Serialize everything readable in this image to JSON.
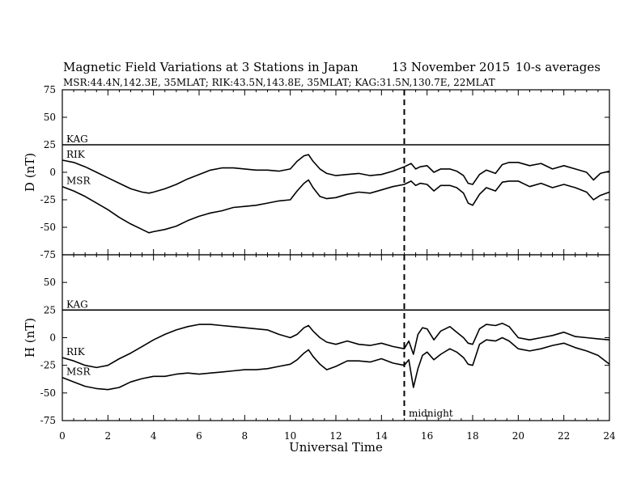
{
  "title": {
    "main": "Magnetic Field Variations at 3 Stations in Japan",
    "date": "13 November 2015",
    "averaging": "10-s averages"
  },
  "subtitle": "MSR:44.4N,142.3E, 35MLAT;  RIK:43.5N,143.8E, 35MLAT;  KAG:31.5N,130.7E, 22MLAT",
  "xlabel": "Universal Time",
  "midnight_label": "midnight",
  "colors": {
    "line": "#000000",
    "background": "#ffffff"
  },
  "chart_data": [
    {
      "type": "line",
      "panel": "top",
      "ylabel": "D (nT)",
      "x_ticks": [
        0,
        2,
        4,
        6,
        8,
        10,
        12,
        14,
        16,
        18,
        20,
        22,
        24
      ],
      "y_ticks": [
        -75,
        -50,
        -25,
        0,
        25,
        50,
        75
      ],
      "xlim": [
        0,
        24
      ],
      "ylim": [
        -75,
        75
      ],
      "vline": 15,
      "series": [
        {
          "name": "KAG",
          "x": [
            0,
            24
          ],
          "y": [
            25,
            25
          ]
        },
        {
          "name": "RIK",
          "x": [
            0,
            0.5,
            1,
            1.5,
            2,
            2.5,
            3,
            3.5,
            3.8,
            4,
            4.5,
            5,
            5.5,
            6,
            6.5,
            7,
            7.5,
            8,
            8.5,
            9,
            9.5,
            10,
            10.3,
            10.6,
            10.8,
            11,
            11.3,
            11.6,
            12,
            12.5,
            13,
            13.5,
            14,
            14.5,
            15,
            15.3,
            15.5,
            15.7,
            16,
            16.3,
            16.6,
            17,
            17.3,
            17.6,
            17.8,
            18,
            18.3,
            18.6,
            19,
            19.3,
            19.6,
            20,
            20.5,
            21,
            21.5,
            22,
            22.5,
            23,
            23.3,
            23.6,
            24
          ],
          "y": [
            11,
            9,
            5,
            0,
            -5,
            -10,
            -15,
            -18,
            -19,
            -18,
            -15,
            -11,
            -6,
            -2,
            2,
            4,
            4,
            3,
            2,
            2,
            1,
            3,
            10,
            15,
            16,
            10,
            3,
            -1,
            -3,
            -2,
            -1,
            -3,
            -2,
            1,
            5,
            8,
            3,
            5,
            6,
            0,
            3,
            3,
            1,
            -3,
            -10,
            -11,
            -2,
            2,
            -1,
            7,
            9,
            9,
            6,
            8,
            3,
            6,
            3,
            0,
            -7,
            -1,
            1
          ]
        },
        {
          "name": "MSR",
          "x": [
            0,
            0.5,
            1,
            1.5,
            2,
            2.5,
            3,
            3.5,
            3.8,
            4,
            4.5,
            5,
            5.5,
            6,
            6.5,
            7,
            7.5,
            8,
            8.5,
            9,
            9.5,
            10,
            10.3,
            10.6,
            10.8,
            11,
            11.3,
            11.6,
            12,
            12.5,
            13,
            13.5,
            14,
            14.5,
            15,
            15.3,
            15.5,
            15.7,
            16,
            16.3,
            16.6,
            17,
            17.3,
            17.6,
            17.8,
            18,
            18.3,
            18.6,
            19,
            19.3,
            19.6,
            20,
            20.5,
            21,
            21.5,
            22,
            22.5,
            23,
            23.3,
            23.6,
            24
          ],
          "y": [
            -13,
            -17,
            -22,
            -28,
            -34,
            -41,
            -47,
            -52,
            -55,
            -54,
            -52,
            -49,
            -44,
            -40,
            -37,
            -35,
            -32,
            -31,
            -30,
            -28,
            -26,
            -25,
            -17,
            -10,
            -7,
            -14,
            -22,
            -24,
            -23,
            -20,
            -18,
            -19,
            -16,
            -13,
            -11,
            -8,
            -12,
            -10,
            -11,
            -17,
            -12,
            -12,
            -14,
            -19,
            -28,
            -30,
            -20,
            -14,
            -17,
            -9,
            -8,
            -8,
            -13,
            -10,
            -14,
            -11,
            -14,
            -18,
            -25,
            -21,
            -18
          ]
        }
      ]
    },
    {
      "type": "line",
      "panel": "bottom",
      "ylabel": "H (nT)",
      "x_ticks": [
        0,
        2,
        4,
        6,
        8,
        10,
        12,
        14,
        16,
        18,
        20,
        22,
        24
      ],
      "y_ticks": [
        -75,
        -50,
        -25,
        0,
        25,
        50,
        75
      ],
      "xlim": [
        0,
        24
      ],
      "ylim": [
        -75,
        75
      ],
      "vline": 15,
      "series": [
        {
          "name": "KAG",
          "x": [
            0,
            24
          ],
          "y": [
            25,
            25
          ]
        },
        {
          "name": "RIK",
          "x": [
            0,
            0.5,
            1,
            1.5,
            2,
            2.5,
            3,
            3.5,
            4,
            4.5,
            5,
            5.5,
            6,
            6.5,
            7,
            7.5,
            8,
            8.5,
            9,
            9.5,
            10,
            10.3,
            10.6,
            10.8,
            11,
            11.3,
            11.6,
            12,
            12.5,
            13,
            13.5,
            14,
            14.5,
            15,
            15.2,
            15.4,
            15.6,
            15.8,
            16,
            16.3,
            16.6,
            17,
            17.3,
            17.6,
            17.8,
            18,
            18.3,
            18.6,
            19,
            19.3,
            19.6,
            20,
            20.5,
            21,
            21.5,
            22,
            22.5,
            23,
            23.5,
            24
          ],
          "y": [
            -18,
            -21,
            -25,
            -27,
            -25,
            -19,
            -14,
            -8,
            -2,
            3,
            7,
            10,
            12,
            12,
            11,
            10,
            9,
            8,
            7,
            3,
            0,
            3,
            9,
            11,
            6,
            0,
            -4,
            -6,
            -3,
            -6,
            -7,
            -5,
            -8,
            -10,
            -3,
            -15,
            3,
            9,
            8,
            -2,
            6,
            10,
            5,
            0,
            -5,
            -6,
            8,
            12,
            11,
            13,
            10,
            0,
            -2,
            0,
            2,
            5,
            1,
            0,
            -1,
            -2
          ]
        },
        {
          "name": "MSR",
          "x": [
            0,
            0.5,
            1,
            1.5,
            2,
            2.5,
            3,
            3.5,
            4,
            4.5,
            5,
            5.5,
            6,
            6.5,
            7,
            7.5,
            8,
            8.5,
            9,
            9.5,
            10,
            10.3,
            10.6,
            10.8,
            11,
            11.3,
            11.6,
            12,
            12.5,
            13,
            13.5,
            14,
            14.5,
            15,
            15.2,
            15.4,
            15.6,
            15.8,
            16,
            16.3,
            16.6,
            17,
            17.3,
            17.6,
            17.8,
            18,
            18.3,
            18.6,
            19,
            19.3,
            19.6,
            20,
            20.5,
            21,
            21.5,
            22,
            22.5,
            23,
            23.5,
            24
          ],
          "y": [
            -36,
            -40,
            -44,
            -46,
            -47,
            -45,
            -40,
            -37,
            -35,
            -35,
            -33,
            -32,
            -33,
            -32,
            -31,
            -30,
            -29,
            -29,
            -28,
            -26,
            -24,
            -20,
            -14,
            -11,
            -17,
            -24,
            -29,
            -26,
            -21,
            -21,
            -22,
            -19,
            -23,
            -25,
            -20,
            -45,
            -28,
            -16,
            -13,
            -20,
            -15,
            -10,
            -13,
            -18,
            -24,
            -25,
            -6,
            -2,
            -3,
            0,
            -3,
            -10,
            -12,
            -10,
            -7,
            -5,
            -9,
            -12,
            -16,
            -24
          ]
        }
      ]
    }
  ]
}
